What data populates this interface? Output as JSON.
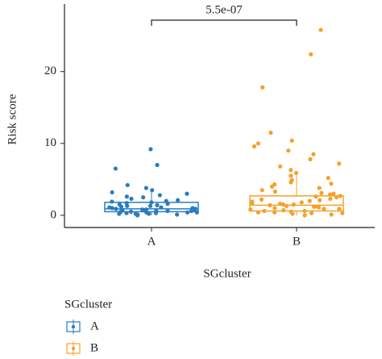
{
  "chart_data": {
    "type": "box",
    "y_label": "Risk score",
    "x_label": "SGcluster",
    "categories": [
      "A",
      "B"
    ],
    "colors": [
      "#2a7cc0",
      "#f5a12a"
    ],
    "ylim": [
      -1.7,
      29.4
    ],
    "yticks": [
      0,
      10,
      20
    ],
    "boxes": [
      {
        "whisker_low": 0,
        "q1": 0.5,
        "median": 0.9,
        "q3": 1.8,
        "whisker_high": 3.5
      },
      {
        "whisker_low": 0,
        "q1": 0.6,
        "median": 1.4,
        "q3": 2.7,
        "whisker_high": 5.8
      }
    ],
    "points": [
      [
        9.2,
        7.0,
        6.5,
        4.2,
        3.8,
        3.5,
        3.2,
        3.0,
        2.8,
        2.5,
        2.3,
        2.1,
        2.0,
        1.9,
        1.8,
        1.7,
        1.6,
        1.5,
        1.4,
        1.3,
        1.2,
        1.1,
        1.0,
        0.9,
        0.9,
        0.8,
        0.8,
        0.7,
        0.7,
        0.6,
        0.6,
        0.5,
        0.5,
        0.4,
        0.4,
        0.3,
        0.3,
        0.2,
        0.2,
        0.1,
        0.1,
        0.0,
        1.0,
        0.6,
        1.3,
        0.4,
        0.2,
        2.6,
        1.1,
        0.8
      ],
      [
        25.8,
        22.4,
        17.8,
        11.5,
        10.4,
        10.0,
        9.6,
        9.0,
        8.5,
        7.8,
        7.2,
        6.8,
        6.3,
        5.9,
        5.5,
        5.2,
        4.9,
        4.6,
        4.3,
        4.0,
        3.8,
        3.5,
        3.3,
        3.1,
        2.9,
        2.7,
        2.5,
        2.3,
        2.1,
        2.0,
        1.8,
        1.7,
        1.6,
        1.5,
        1.4,
        1.3,
        1.2,
        1.1,
        1.0,
        0.9,
        0.8,
        0.7,
        0.6,
        0.5,
        0.4,
        0.3,
        0.2,
        0.1,
        0.0,
        1.5,
        2.2,
        0.9,
        3.0,
        0.4,
        1.9,
        0.6,
        2.6,
        1.2,
        0.3,
        4.4
      ]
    ],
    "annotation": "5.5e-07",
    "legend_title": "SGcluster"
  }
}
